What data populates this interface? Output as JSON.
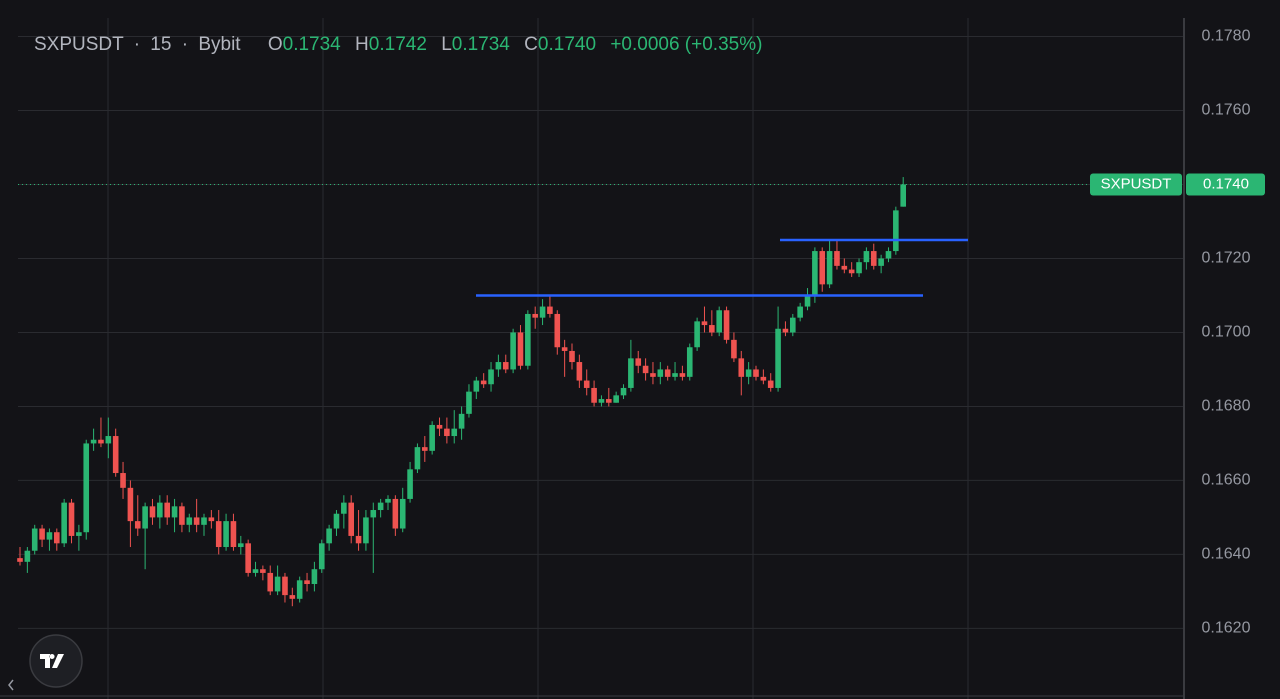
{
  "chart_data": {
    "type": "candlestick",
    "header": {
      "symbol": "SXPUSDT",
      "interval": "15",
      "exchange": "Bybit",
      "open_label": "O",
      "open": "0.1734",
      "high_label": "H",
      "high": "0.1742",
      "low_label": "L",
      "low": "0.1734",
      "close_label": "C",
      "close": "0.1740",
      "change": "+0.0006 (+0.35%)"
    },
    "up_color": "#2bb673",
    "down_color": "#ef5350",
    "ylim": [
      0.1602,
      0.1785
    ],
    "yticks": [
      {
        "value": 0.162,
        "label": "0.1620"
      },
      {
        "value": 0.164,
        "label": "0.1640"
      },
      {
        "value": 0.166,
        "label": "0.1660"
      },
      {
        "value": 0.168,
        "label": "0.1680"
      },
      {
        "value": 0.17,
        "label": "0.1700"
      },
      {
        "value": 0.172,
        "label": "0.1720"
      },
      {
        "value": 0.174,
        "label": "0.1740"
      },
      {
        "value": 0.176,
        "label": "0.1760"
      },
      {
        "value": 0.178,
        "label": "0.1780"
      }
    ],
    "grid": true,
    "last_price": {
      "name": "SXPUSDT",
      "value": 0.174,
      "label": "0.1740",
      "color": "#2bb673"
    },
    "trend_lines": [
      {
        "value": 0.171,
        "color": "#2962ff"
      },
      {
        "value": 0.1725,
        "color": "#2962ff"
      }
    ],
    "candles": [
      [
        0.1639,
        0.1642,
        0.1637,
        0.1638
      ],
      [
        0.1638,
        0.1642,
        0.1635,
        0.1641
      ],
      [
        0.1641,
        0.1648,
        0.164,
        0.1647
      ],
      [
        0.1647,
        0.1648,
        0.1642,
        0.1644
      ],
      [
        0.1644,
        0.1647,
        0.1641,
        0.1646
      ],
      [
        0.1646,
        0.1647,
        0.1641,
        0.1643
      ],
      [
        0.1643,
        0.1655,
        0.1642,
        0.1654
      ],
      [
        0.1654,
        0.1655,
        0.1643,
        0.1645
      ],
      [
        0.1645,
        0.1648,
        0.1641,
        0.1646
      ],
      [
        0.1646,
        0.1671,
        0.1644,
        0.167
      ],
      [
        0.167,
        0.1674,
        0.1668,
        0.1671
      ],
      [
        0.1671,
        0.1677,
        0.1669,
        0.167
      ],
      [
        0.167,
        0.1677,
        0.1666,
        0.1672
      ],
      [
        0.1672,
        0.1674,
        0.1661,
        0.1662
      ],
      [
        0.1662,
        0.1665,
        0.1655,
        0.1658
      ],
      [
        0.1658,
        0.166,
        0.1642,
        0.1649
      ],
      [
        0.1649,
        0.1656,
        0.1645,
        0.1647
      ],
      [
        0.1647,
        0.1654,
        0.1636,
        0.1653
      ],
      [
        0.1653,
        0.1655,
        0.1648,
        0.165
      ],
      [
        0.165,
        0.1656,
        0.1647,
        0.1654
      ],
      [
        0.1654,
        0.1656,
        0.1648,
        0.165
      ],
      [
        0.165,
        0.1655,
        0.1646,
        0.1653
      ],
      [
        0.1653,
        0.1654,
        0.1646,
        0.1648
      ],
      [
        0.1648,
        0.1651,
        0.1646,
        0.165
      ],
      [
        0.165,
        0.1655,
        0.1646,
        0.1648
      ],
      [
        0.1648,
        0.1651,
        0.1645,
        0.165
      ],
      [
        0.165,
        0.1652,
        0.1647,
        0.1649
      ],
      [
        0.1649,
        0.1652,
        0.164,
        0.1642
      ],
      [
        0.1642,
        0.1651,
        0.1641,
        0.1649
      ],
      [
        0.1649,
        0.1651,
        0.1641,
        0.1642
      ],
      [
        0.1642,
        0.1645,
        0.164,
        0.1643
      ],
      [
        0.1643,
        0.1644,
        0.1634,
        0.1635
      ],
      [
        0.1635,
        0.1638,
        0.1634,
        0.1636
      ],
      [
        0.1636,
        0.1637,
        0.1633,
        0.1635
      ],
      [
        0.1635,
        0.1637,
        0.1629,
        0.163
      ],
      [
        0.163,
        0.1637,
        0.1629,
        0.1634
      ],
      [
        0.1634,
        0.1635,
        0.1627,
        0.1629
      ],
      [
        0.1629,
        0.1631,
        0.1626,
        0.1628
      ],
      [
        0.1628,
        0.1634,
        0.1627,
        0.1633
      ],
      [
        0.1633,
        0.1635,
        0.163,
        0.1632
      ],
      [
        0.1632,
        0.1638,
        0.163,
        0.1636
      ],
      [
        0.1636,
        0.1644,
        0.1635,
        0.1643
      ],
      [
        0.1643,
        0.1648,
        0.1641,
        0.1647
      ],
      [
        0.1647,
        0.1652,
        0.1645,
        0.1651
      ],
      [
        0.1651,
        0.1656,
        0.1647,
        0.1654
      ],
      [
        0.1654,
        0.1656,
        0.1643,
        0.1645
      ],
      [
        0.1645,
        0.1652,
        0.1641,
        0.1643
      ],
      [
        0.1643,
        0.1652,
        0.1641,
        0.165
      ],
      [
        0.165,
        0.1654,
        0.1635,
        0.1652
      ],
      [
        0.1652,
        0.1655,
        0.165,
        0.1654
      ],
      [
        0.1654,
        0.1656,
        0.1652,
        0.1655
      ],
      [
        0.1655,
        0.1656,
        0.1645,
        0.1647
      ],
      [
        0.1647,
        0.1658,
        0.1646,
        0.1655
      ],
      [
        0.1655,
        0.1665,
        0.1654,
        0.1663
      ],
      [
        0.1663,
        0.167,
        0.1662,
        0.1669
      ],
      [
        0.1669,
        0.1672,
        0.1665,
        0.1668
      ],
      [
        0.1668,
        0.1676,
        0.1667,
        0.1675
      ],
      [
        0.1675,
        0.1677,
        0.1672,
        0.1674
      ],
      [
        0.1674,
        0.1677,
        0.167,
        0.1672
      ],
      [
        0.1672,
        0.1679,
        0.167,
        0.1674
      ],
      [
        0.1674,
        0.168,
        0.1671,
        0.1678
      ],
      [
        0.1678,
        0.1686,
        0.1677,
        0.1684
      ],
      [
        0.1684,
        0.1688,
        0.1682,
        0.1687
      ],
      [
        0.1687,
        0.1689,
        0.1685,
        0.1686
      ],
      [
        0.1686,
        0.1692,
        0.1684,
        0.169
      ],
      [
        0.169,
        0.1694,
        0.1688,
        0.1692
      ],
      [
        0.1692,
        0.1694,
        0.1689,
        0.169
      ],
      [
        0.169,
        0.1701,
        0.1689,
        0.17
      ],
      [
        0.17,
        0.1702,
        0.169,
        0.1691
      ],
      [
        0.1691,
        0.1706,
        0.169,
        0.1705
      ],
      [
        0.1705,
        0.1707,
        0.1701,
        0.1704
      ],
      [
        0.1704,
        0.1709,
        0.1702,
        0.1707
      ],
      [
        0.1707,
        0.171,
        0.1704,
        0.1705
      ],
      [
        0.1705,
        0.1706,
        0.1694,
        0.1696
      ],
      [
        0.1696,
        0.1698,
        0.1688,
        0.1695
      ],
      [
        0.1695,
        0.1697,
        0.169,
        0.1692
      ],
      [
        0.1692,
        0.1694,
        0.1685,
        0.1687
      ],
      [
        0.1687,
        0.169,
        0.1683,
        0.1685
      ],
      [
        0.1685,
        0.1687,
        0.168,
        0.1681
      ],
      [
        0.1681,
        0.1683,
        0.168,
        0.1682
      ],
      [
        0.1682,
        0.1685,
        0.168,
        0.1681
      ],
      [
        0.1681,
        0.1684,
        0.1681,
        0.1683
      ],
      [
        0.1683,
        0.1686,
        0.1682,
        0.1685
      ],
      [
        0.1685,
        0.1698,
        0.1684,
        0.1693
      ],
      [
        0.1693,
        0.1695,
        0.1689,
        0.1691
      ],
      [
        0.1691,
        0.1693,
        0.1687,
        0.1689
      ],
      [
        0.1689,
        0.1692,
        0.1686,
        0.1688
      ],
      [
        0.1688,
        0.1692,
        0.1686,
        0.169
      ],
      [
        0.169,
        0.1691,
        0.1687,
        0.1688
      ],
      [
        0.1688,
        0.1692,
        0.1687,
        0.1689
      ],
      [
        0.1689,
        0.1691,
        0.1687,
        0.1688
      ],
      [
        0.1688,
        0.1697,
        0.1687,
        0.1696
      ],
      [
        0.1696,
        0.1704,
        0.1695,
        0.1703
      ],
      [
        0.1703,
        0.1707,
        0.17,
        0.1702
      ],
      [
        0.1702,
        0.1706,
        0.1699,
        0.17
      ],
      [
        0.17,
        0.1707,
        0.1699,
        0.1706
      ],
      [
        0.1706,
        0.1707,
        0.1697,
        0.1698
      ],
      [
        0.1698,
        0.17,
        0.1692,
        0.1693
      ],
      [
        0.1693,
        0.1695,
        0.1683,
        0.1688
      ],
      [
        0.1688,
        0.1692,
        0.1686,
        0.169
      ],
      [
        0.169,
        0.1691,
        0.1687,
        0.1688
      ],
      [
        0.1688,
        0.169,
        0.1686,
        0.1687
      ],
      [
        0.1687,
        0.1689,
        0.1684,
        0.1685
      ],
      [
        0.1685,
        0.1707,
        0.1684,
        0.1701
      ],
      [
        0.1701,
        0.1703,
        0.1699,
        0.17
      ],
      [
        0.17,
        0.1705,
        0.1699,
        0.1704
      ],
      [
        0.1704,
        0.1708,
        0.1703,
        0.1707
      ],
      [
        0.1707,
        0.1712,
        0.1706,
        0.171
      ],
      [
        0.171,
        0.1723,
        0.1708,
        0.1722
      ],
      [
        0.1722,
        0.1723,
        0.1711,
        0.1713
      ],
      [
        0.1713,
        0.1725,
        0.1712,
        0.1722
      ],
      [
        0.1722,
        0.1725,
        0.1717,
        0.1718
      ],
      [
        0.1718,
        0.172,
        0.1716,
        0.1717
      ],
      [
        0.1717,
        0.1719,
        0.1715,
        0.1716
      ],
      [
        0.1716,
        0.172,
        0.1715,
        0.1719
      ],
      [
        0.1719,
        0.1723,
        0.1717,
        0.1722
      ],
      [
        0.1722,
        0.1724,
        0.1717,
        0.1718
      ],
      [
        0.1718,
        0.1721,
        0.1716,
        0.172
      ],
      [
        0.172,
        0.1723,
        0.1719,
        0.1722
      ],
      [
        0.1722,
        0.1734,
        0.1721,
        0.1733
      ],
      [
        0.1734,
        0.1742,
        0.1734,
        0.174
      ]
    ]
  }
}
